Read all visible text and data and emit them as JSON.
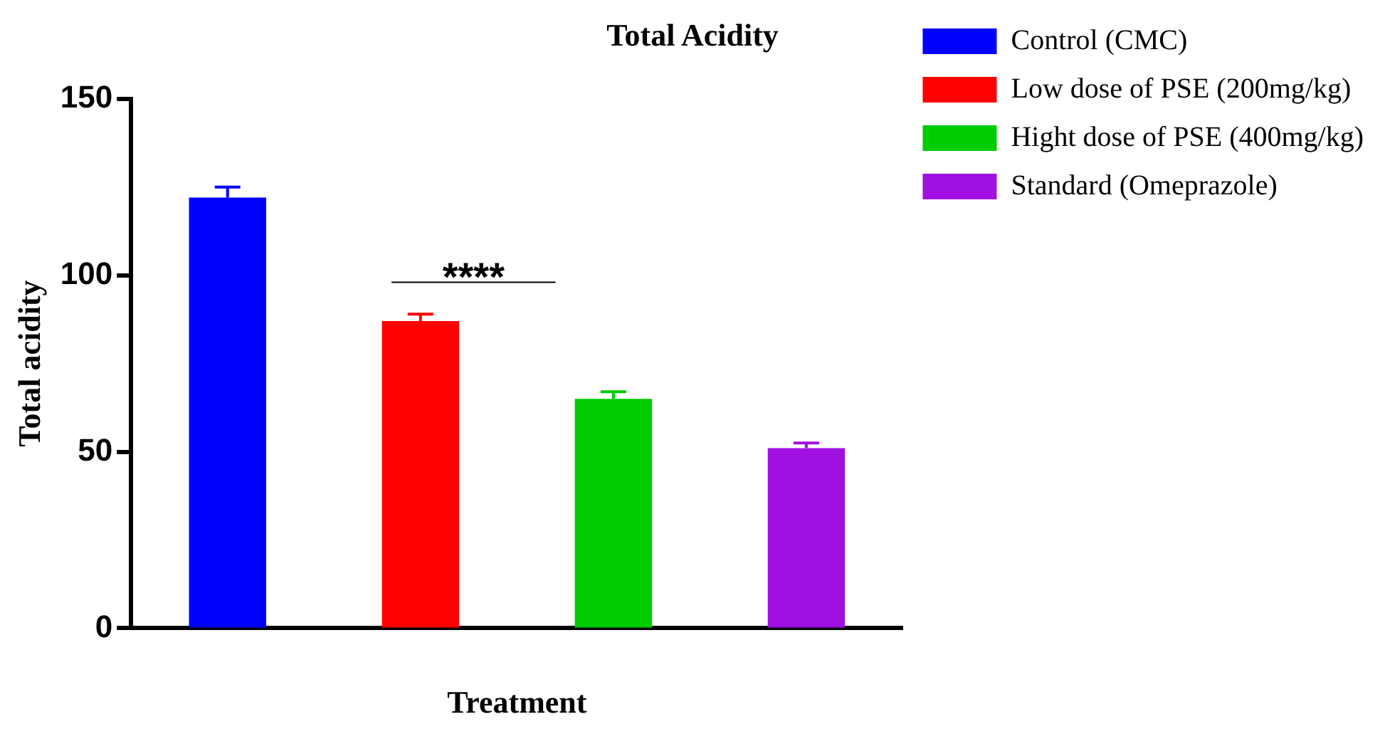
{
  "chart_data": {
    "type": "bar",
    "title": "Total Acidity",
    "xlabel": "Treatment",
    "ylabel": "Total acidity",
    "categories": [
      null,
      null,
      null,
      null
    ],
    "series": [
      {
        "name": "Control (CMC)",
        "color": "#0000ff",
        "values": [
          122,
          null,
          null,
          null
        ],
        "errors": [
          3,
          null,
          null,
          null
        ]
      },
      {
        "name": "Low dose of PSE (200mg/kg)",
        "color": "#ff0000",
        "values": [
          null,
          87,
          null,
          null
        ],
        "errors": [
          null,
          2,
          null,
          null
        ]
      },
      {
        "name": "Hight dose of PSE (400mg/kg)",
        "color": "#00cc00",
        "values": [
          null,
          null,
          65,
          null
        ],
        "errors": [
          null,
          null,
          2,
          null
        ]
      },
      {
        "name": "Standard (Omeprazole)",
        "color": "#a010e0",
        "values": [
          null,
          null,
          null,
          51
        ],
        "errors": [
          null,
          null,
          null,
          1.5
        ]
      }
    ],
    "ylim": [
      0,
      150
    ],
    "yticks": [
      0,
      50,
      100,
      150
    ],
    "grid": false,
    "legend": "right",
    "annotations": [
      "****"
    ]
  }
}
